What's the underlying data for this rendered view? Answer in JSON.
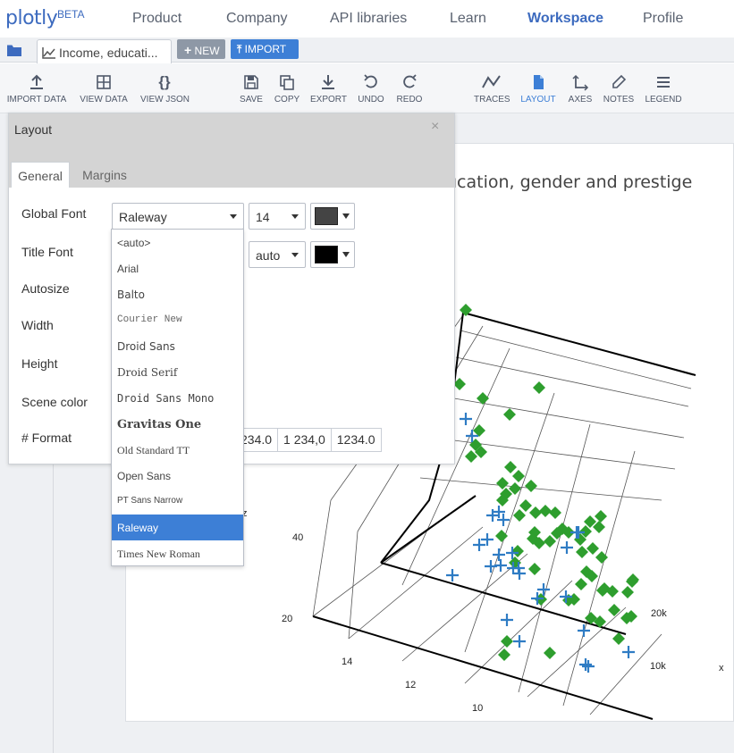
{
  "app": {
    "logo": "plotly",
    "beta": "BETA"
  },
  "nav": {
    "product": "Product",
    "company": "Company",
    "api": "API libraries",
    "learn": "Learn",
    "workspace": "Workspace",
    "profile": "Profile"
  },
  "tabs": {
    "file_tab": "Income, educati...",
    "new_label": "NEW",
    "import_label": "IMPORT"
  },
  "toolbar": {
    "import_data": "IMPORT DATA",
    "view_data": "VIEW DATA",
    "view_json": "VIEW JSON",
    "save": "SAVE",
    "copy": "COPY",
    "export": "EXPORT",
    "undo": "UNDO",
    "redo": "REDO",
    "traces": "TRACES",
    "layout": "LAYOUT",
    "axes": "AXES",
    "notes": "NOTES",
    "legend": "LEGEND"
  },
  "panel": {
    "title": "Layout",
    "close": "×",
    "tabs": {
      "general": "General",
      "margins": "Margins"
    },
    "rows": {
      "global_font": "Global Font",
      "title_font": "Title Font",
      "autosize": "Autosize",
      "width": "Width",
      "height": "Height",
      "scene_color": "Scene color",
      "format": "# Format"
    },
    "global_font_value": "Raleway",
    "global_size": "14",
    "title_size": "auto",
    "global_color": "#444444",
    "title_color": "#000000",
    "format_options": [
      "234.0",
      "1 234,0",
      "1234.0"
    ]
  },
  "font_dropdown": {
    "options": [
      "<auto>",
      "Arial",
      "Balto",
      "Courier New",
      "Droid Sans",
      "Droid Serif",
      "Droid Sans Mono",
      "Gravitas One",
      "Old Standard TT",
      "Open Sans",
      "PT Sans Narrow",
      "Raleway",
      "Times New Roman"
    ],
    "selected": "Raleway"
  },
  "plot": {
    "title": "ucation, gender and prestige",
    "axis_labels": {
      "x": "x",
      "z_label": "z"
    },
    "z_ticks": [
      "40",
      "20"
    ],
    "y_ticks": [
      "14",
      "12",
      "10"
    ],
    "x_ticks": [
      "20k",
      "10k"
    ],
    "marker_colors": {
      "diamond": "#2e9e2e",
      "cross": "#2f7cc4"
    }
  },
  "colors": {
    "accent": "#3d7fd6",
    "selected": "#3d7fd6",
    "brand": "#3d6bbf"
  }
}
